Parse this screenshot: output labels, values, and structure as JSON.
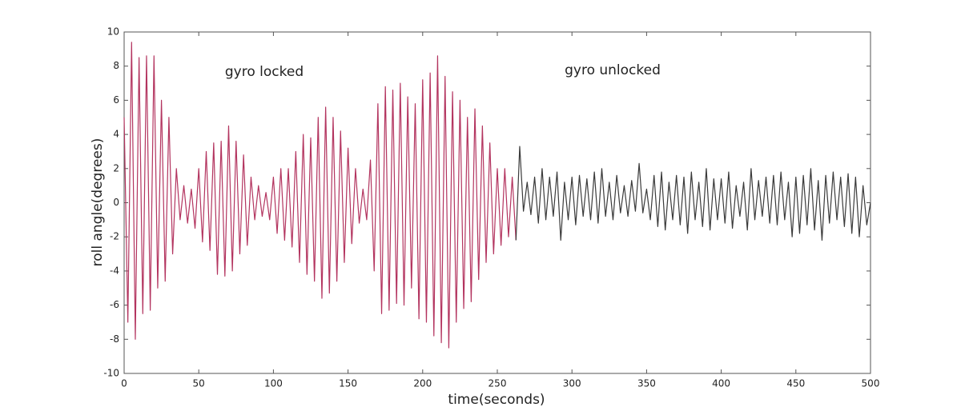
{
  "chart_data": {
    "type": "line",
    "xlabel": "time(seconds)",
    "ylabel": "roll angle(degrees)",
    "annotations": [
      "gyro locked",
      "gyro unlocked"
    ],
    "xlim": [
      0,
      500
    ],
    "ylim": [
      -10,
      10
    ],
    "xticks": [
      0,
      50,
      100,
      150,
      200,
      250,
      300,
      350,
      400,
      450,
      500
    ],
    "yticks": [
      -10,
      -8,
      -6,
      -4,
      -2,
      0,
      2,
      4,
      6,
      8,
      10
    ],
    "x": [
      0,
      2.5,
      5,
      7.5,
      10,
      12.5,
      15,
      17.5,
      20,
      22.5,
      25,
      27.5,
      30,
      32.5,
      35,
      37.5,
      40,
      42.5,
      45,
      47.5,
      50,
      52.5,
      55,
      57.5,
      60,
      62.5,
      65,
      67.5,
      70,
      72.5,
      75,
      77.5,
      80,
      82.5,
      85,
      87.5,
      90,
      92.5,
      95,
      97.5,
      100,
      102.5,
      105,
      107.5,
      110,
      112.5,
      115,
      117.5,
      120,
      122.5,
      125,
      127.5,
      130,
      132.5,
      135,
      137.5,
      140,
      142.5,
      145,
      147.5,
      150,
      152.5,
      155,
      157.5,
      160,
      162.5,
      165,
      167.5,
      170,
      172.5,
      175,
      177.5,
      180,
      182.5,
      185,
      187.5,
      190,
      192.5,
      195,
      197.5,
      200,
      202.5,
      205,
      207.5,
      210,
      212.5,
      215,
      217.5,
      220,
      222.5,
      225,
      227.5,
      230,
      232.5,
      235,
      237.5,
      240,
      242.5,
      245,
      247.5,
      250,
      252.5,
      255,
      257.5,
      260,
      262.5,
      265,
      267.5,
      270,
      272.5,
      275,
      277.5,
      280,
      282.5,
      285,
      287.5,
      290,
      292.5,
      295,
      297.5,
      300,
      302.5,
      305,
      307.5,
      310,
      312.5,
      315,
      317.5,
      320,
      322.5,
      325,
      327.5,
      330,
      332.5,
      335,
      337.5,
      340,
      342.5,
      345,
      347.5,
      350,
      352.5,
      355,
      357.5,
      360,
      362.5,
      365,
      367.5,
      370,
      372.5,
      375,
      377.5,
      380,
      382.5,
      385,
      387.5,
      390,
      392.5,
      395,
      397.5,
      400,
      402.5,
      405,
      407.5,
      410,
      412.5,
      415,
      417.5,
      420,
      422.5,
      425,
      427.5,
      430,
      432.5,
      435,
      437.5,
      440,
      442.5,
      445,
      447.5,
      450,
      452.5,
      455,
      457.5,
      460,
      462.5,
      465,
      467.5,
      470,
      472.5,
      475,
      477.5,
      480,
      482.5,
      485,
      487.5,
      490,
      492.5,
      495,
      497.5,
      500
    ],
    "series": [
      {
        "color": "#b3345f",
        "values": [
          5,
          -7,
          9.4,
          -8,
          8.5,
          -6.5,
          8.6,
          -6.3,
          8.6,
          -5,
          6,
          -4.6,
          5,
          -3,
          2,
          -1,
          1,
          -1.2,
          0.8,
          -1.5,
          2,
          -2.3,
          3,
          -2.8,
          3.5,
          -4.2,
          3.6,
          -4.3,
          4.5,
          -4,
          3.6,
          -3,
          2.8,
          -2.5,
          1.5,
          -1,
          1,
          -0.8,
          0.6,
          -1,
          1.5,
          -1.8,
          2,
          -2.2,
          2,
          -2.6,
          3,
          -3.5,
          4,
          -4.2,
          3.8,
          -4.6,
          5,
          -5.6,
          5.6,
          -5.3,
          5,
          -4.6,
          4.2,
          -3.5,
          3.2,
          -2.4,
          2,
          -1.2,
          0.8,
          -1,
          2.5,
          -4,
          5.8,
          -6.5,
          6.8,
          -6.3,
          6.6,
          -5.9,
          7,
          -6,
          6.2,
          -5,
          5.8,
          -6.8,
          7.2,
          -7,
          7.6,
          -7.8,
          8.6,
          -8.2,
          7.4,
          -8.5,
          6.5,
          -7,
          6,
          -6.2,
          5,
          -5.8,
          5.5,
          -4.5,
          4.5,
          -3.5,
          3.5,
          -3,
          2,
          -2.5,
          2,
          -2,
          1.5,
          -2.2,
          null,
          null,
          null,
          null,
          null,
          null,
          null,
          null,
          null,
          null,
          null,
          null,
          null,
          null,
          null,
          null,
          null,
          null,
          null,
          null,
          null,
          null,
          null,
          null,
          null,
          null,
          null,
          null,
          null,
          null,
          null,
          null,
          null,
          null,
          null,
          null,
          null,
          null,
          null,
          null,
          null,
          null,
          null,
          null,
          null,
          null,
          null,
          null,
          null,
          null,
          null,
          null,
          null,
          null,
          null,
          null,
          null,
          null,
          null,
          null,
          null,
          null,
          null,
          null,
          null,
          null,
          null,
          null,
          null,
          null,
          null,
          null,
          null,
          null,
          null,
          null,
          null,
          null,
          null,
          null,
          null,
          null,
          null,
          null,
          null,
          null,
          null,
          null,
          null,
          null,
          null,
          null,
          null,
          null,
          null
        ]
      },
      {
        "color": "#3a3a3a",
        "values": [
          null,
          null,
          null,
          null,
          null,
          null,
          null,
          null,
          null,
          null,
          null,
          null,
          null,
          null,
          null,
          null,
          null,
          null,
          null,
          null,
          null,
          null,
          null,
          null,
          null,
          null,
          null,
          null,
          null,
          null,
          null,
          null,
          null,
          null,
          null,
          null,
          null,
          null,
          null,
          null,
          null,
          null,
          null,
          null,
          null,
          null,
          null,
          null,
          null,
          null,
          null,
          null,
          null,
          null,
          null,
          null,
          null,
          null,
          null,
          null,
          null,
          null,
          null,
          null,
          null,
          null,
          null,
          null,
          null,
          null,
          null,
          null,
          null,
          null,
          null,
          null,
          null,
          null,
          null,
          null,
          null,
          null,
          null,
          null,
          null,
          null,
          null,
          null,
          null,
          null,
          null,
          null,
          null,
          null,
          null,
          null,
          null,
          null,
          null,
          null,
          null,
          null,
          null,
          null,
          null,
          -2.2,
          3.3,
          -0.5,
          1.2,
          -0.7,
          1.5,
          -1.2,
          2,
          -1,
          1.5,
          -0.8,
          1.8,
          -2.2,
          1.2,
          -1,
          1.5,
          -1.3,
          1.6,
          -0.8,
          1.4,
          -1,
          1.8,
          -1.2,
          2,
          -0.8,
          1.2,
          -1,
          1.6,
          -0.6,
          1,
          -0.8,
          1.3,
          -0.5,
          2.3,
          -0.6,
          0.8,
          -1,
          1.6,
          -1.4,
          1.8,
          -1.6,
          1.2,
          -1,
          1.6,
          -1.3,
          1.5,
          -1.8,
          1.8,
          -1,
          1.2,
          -1.4,
          2,
          -1.6,
          1.4,
          -1,
          1.4,
          -1.2,
          1.8,
          -1.5,
          1,
          -0.8,
          1.2,
          -1.6,
          2,
          -1,
          1.3,
          -0.8,
          1.5,
          -1.2,
          1.6,
          -1.3,
          1.8,
          -1,
          1.2,
          -2,
          1.5,
          -1.8,
          1.6,
          -1.3,
          2,
          -1.6,
          1.3,
          -2.2,
          1.6,
          -1.2,
          1.8,
          -1,
          1.5,
          -1.4,
          1.7,
          -1.8,
          1.5,
          -2,
          1,
          -1.3,
          0
        ]
      }
    ]
  }
}
